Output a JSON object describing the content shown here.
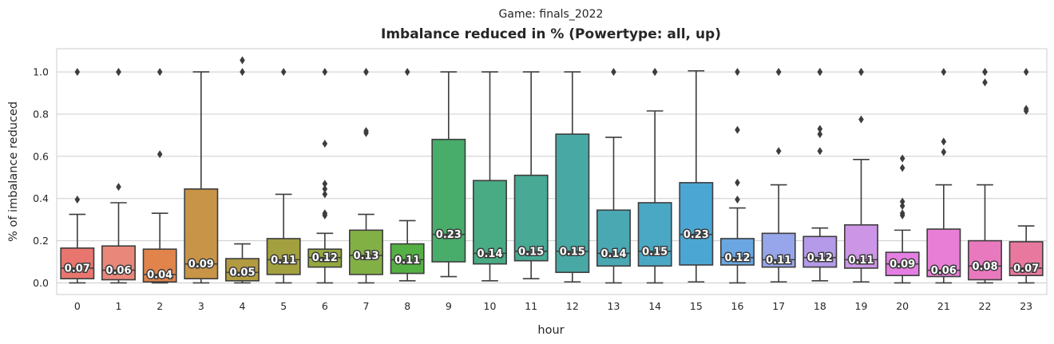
{
  "chart_data": {
    "type": "box",
    "suptitle": "Game: finals_2022",
    "title": "Imbalance reduced in % (Powertype: all, up)",
    "xlabel": "hour",
    "ylabel": "% of imbalance reduced",
    "ylim": [
      -0.055,
      1.11
    ],
    "yticks": [
      0.0,
      0.2,
      0.4,
      0.6,
      0.8,
      1.0
    ],
    "ytick_labels": [
      "0.0",
      "0.2",
      "0.4",
      "0.6",
      "0.8",
      "1.0"
    ],
    "grid": "horizontal",
    "boxes": [
      {
        "category": "0",
        "color": "#e8766f",
        "q1": 0.02,
        "median": 0.07,
        "q3": 0.165,
        "whisker_low": 0.0,
        "whisker_high": 0.325,
        "outliers": [
          0.395,
          1.0
        ],
        "label": "0.07"
      },
      {
        "category": "1",
        "color": "#e8877a",
        "q1": 0.015,
        "median": 0.06,
        "q3": 0.175,
        "whisker_low": 0.0,
        "whisker_high": 0.38,
        "outliers": [
          0.455,
          1.0,
          1.0
        ],
        "label": "0.06"
      },
      {
        "category": "2",
        "color": "#e0844b",
        "q1": 0.005,
        "median": 0.04,
        "q3": 0.16,
        "whisker_low": 0.0,
        "whisker_high": 0.33,
        "outliers": [
          0.61,
          1.0
        ],
        "label": "0.04"
      },
      {
        "category": "3",
        "color": "#c89448",
        "q1": 0.02,
        "median": 0.09,
        "q3": 0.445,
        "whisker_low": 0.0,
        "whisker_high": 1.0,
        "outliers": [],
        "label": "0.09"
      },
      {
        "category": "4",
        "color": "#b29a40",
        "q1": 0.01,
        "median": 0.05,
        "q3": 0.115,
        "whisker_low": 0.0,
        "whisker_high": 0.185,
        "outliers": [
          1.0,
          1.055
        ],
        "label": "0.05"
      },
      {
        "category": "5",
        "color": "#a3a040",
        "q1": 0.04,
        "median": 0.11,
        "q3": 0.21,
        "whisker_low": 0.0,
        "whisker_high": 0.42,
        "outliers": [
          1.0
        ],
        "label": "0.11"
      },
      {
        "category": "6",
        "color": "#93a83e",
        "q1": 0.075,
        "median": 0.12,
        "q3": 0.16,
        "whisker_low": 0.0,
        "whisker_high": 0.235,
        "outliers": [
          0.32,
          0.33,
          0.42,
          0.445,
          0.47,
          0.66,
          1.0
        ],
        "label": "0.12"
      },
      {
        "category": "7",
        "color": "#83b045",
        "q1": 0.04,
        "median": 0.13,
        "q3": 0.25,
        "whisker_low": 0.0,
        "whisker_high": 0.325,
        "outliers": [
          0.71,
          0.72,
          1.0,
          1.0
        ],
        "label": "0.13"
      },
      {
        "category": "8",
        "color": "#54b044",
        "q1": 0.045,
        "median": 0.11,
        "q3": 0.185,
        "whisker_low": 0.01,
        "whisker_high": 0.295,
        "outliers": [
          1.0
        ],
        "label": "0.11"
      },
      {
        "category": "9",
        "color": "#48ad6a",
        "q1": 0.1,
        "median": 0.23,
        "q3": 0.68,
        "whisker_low": 0.03,
        "whisker_high": 1.0,
        "outliers": [],
        "label": "0.23"
      },
      {
        "category": "10",
        "color": "#48ab84",
        "q1": 0.09,
        "median": 0.14,
        "q3": 0.485,
        "whisker_low": 0.01,
        "whisker_high": 1.0,
        "outliers": [],
        "label": "0.14"
      },
      {
        "category": "11",
        "color": "#48a994",
        "q1": 0.105,
        "median": 0.15,
        "q3": 0.51,
        "whisker_low": 0.02,
        "whisker_high": 1.0,
        "outliers": [],
        "label": "0.15"
      },
      {
        "category": "12",
        "color": "#48a8a4",
        "q1": 0.05,
        "median": 0.15,
        "q3": 0.705,
        "whisker_low": 0.005,
        "whisker_high": 1.0,
        "outliers": [],
        "label": "0.15"
      },
      {
        "category": "13",
        "color": "#4aa8b3",
        "q1": 0.08,
        "median": 0.14,
        "q3": 0.345,
        "whisker_low": 0.0,
        "whisker_high": 0.69,
        "outliers": [
          1.0
        ],
        "label": "0.14"
      },
      {
        "category": "14",
        "color": "#4aa8c4",
        "q1": 0.08,
        "median": 0.15,
        "q3": 0.38,
        "whisker_low": 0.0,
        "whisker_high": 0.815,
        "outliers": [
          1.0,
          1.0
        ],
        "label": "0.15"
      },
      {
        "category": "15",
        "color": "#4ca6d4",
        "q1": 0.085,
        "median": 0.23,
        "q3": 0.475,
        "whisker_low": 0.005,
        "whisker_high": 1.005,
        "outliers": [],
        "label": "0.23"
      },
      {
        "category": "16",
        "color": "#6aa7e2",
        "q1": 0.085,
        "median": 0.12,
        "q3": 0.21,
        "whisker_low": 0.0,
        "whisker_high": 0.355,
        "outliers": [
          0.395,
          0.475,
          0.725,
          1.0
        ],
        "label": "0.12"
      },
      {
        "category": "17",
        "color": "#97a5ea",
        "q1": 0.075,
        "median": 0.11,
        "q3": 0.235,
        "whisker_low": 0.005,
        "whisker_high": 0.465,
        "outliers": [
          0.625,
          1.0,
          1.0
        ],
        "label": "0.11"
      },
      {
        "category": "18",
        "color": "#b49ae8",
        "q1": 0.075,
        "median": 0.12,
        "q3": 0.22,
        "whisker_low": 0.01,
        "whisker_high": 0.26,
        "outliers": [
          0.625,
          0.705,
          0.73,
          1.0,
          1.0
        ],
        "label": "0.12"
      },
      {
        "category": "19",
        "color": "#cd95e6",
        "q1": 0.07,
        "median": 0.11,
        "q3": 0.275,
        "whisker_low": 0.005,
        "whisker_high": 0.585,
        "outliers": [
          0.775,
          1.0,
          1.0
        ],
        "label": "0.11"
      },
      {
        "category": "20",
        "color": "#e57ee2",
        "q1": 0.035,
        "median": 0.09,
        "q3": 0.145,
        "whisker_low": 0.0,
        "whisker_high": 0.25,
        "outliers": [
          0.32,
          0.33,
          0.365,
          0.385,
          0.545,
          0.59
        ],
        "label": "0.09"
      },
      {
        "category": "21",
        "color": "#e87ed6",
        "q1": 0.03,
        "median": 0.06,
        "q3": 0.255,
        "whisker_low": 0.0,
        "whisker_high": 0.465,
        "outliers": [
          0.62,
          0.67,
          1.0
        ],
        "label": "0.06"
      },
      {
        "category": "22",
        "color": "#e879bf",
        "q1": 0.015,
        "median": 0.08,
        "q3": 0.2,
        "whisker_low": 0.0,
        "whisker_high": 0.465,
        "outliers": [
          0.95,
          1.0,
          1.0
        ],
        "label": "0.08"
      },
      {
        "category": "23",
        "color": "#e8789e",
        "q1": 0.035,
        "median": 0.07,
        "q3": 0.195,
        "whisker_low": 0.0,
        "whisker_high": 0.27,
        "outliers": [
          0.815,
          0.825,
          1.0
        ],
        "label": "0.07"
      }
    ]
  }
}
